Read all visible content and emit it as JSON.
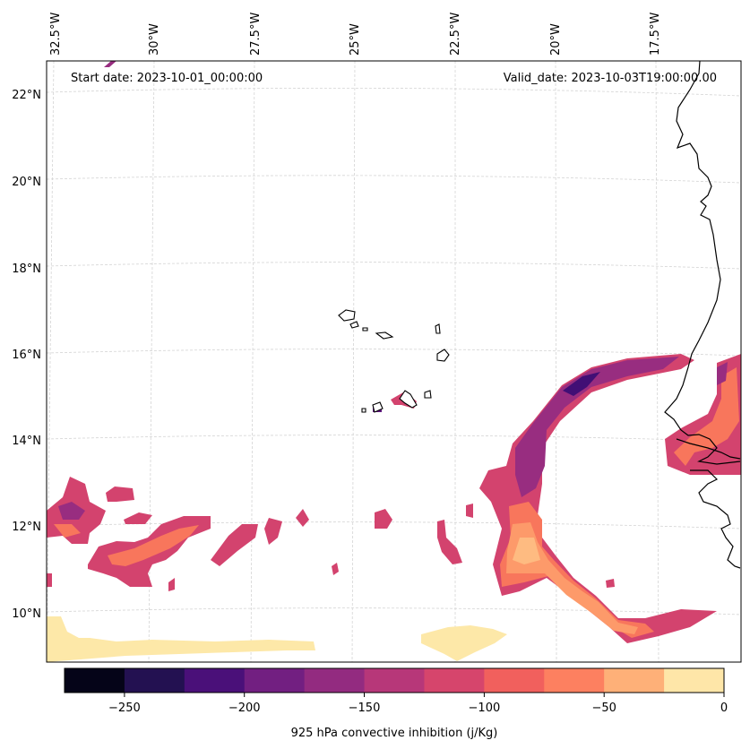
{
  "map": {
    "start_date": "Start date: 2023-10-01_00:00:00",
    "valid_date": "Valid_date: 2023-10-03T19:00:00.00",
    "lon_labels": [
      "32.5°W",
      "30°W",
      "27.5°W",
      "25°W",
      "22.5°W",
      "20°W",
      "17.5°W"
    ],
    "lat_labels": [
      "22°N",
      "20°N",
      "18°N",
      "16°N",
      "14°N",
      "12°N",
      "10°N"
    ]
  },
  "colorbar": {
    "label": "925 hPa convective inhibition (j/Kg)",
    "ticks": [
      "−250",
      "−200",
      "−150",
      "−100",
      "−50",
      "0"
    ],
    "colors": [
      "#050418",
      "#231151",
      "#410f75",
      "#5f187f",
      "#7b2382",
      "#982d80",
      "#b73779",
      "#d3436e",
      "#eb5760",
      "#f8765c",
      "#fd9a6a",
      "#febb81",
      "#fddc9e",
      "#fcfdbf"
    ]
  },
  "palette": {
    "c1": "#f8765c",
    "c2": "#fd9a6a",
    "c3": "#febb81",
    "c4": "#fde8a8",
    "c5": "#eb5760",
    "c6": "#d3436e",
    "c7": "#b73779",
    "c8": "#982d80",
    "c9": "#7b2382",
    "c10": "#5f187f",
    "c11": "#410f75"
  }
}
